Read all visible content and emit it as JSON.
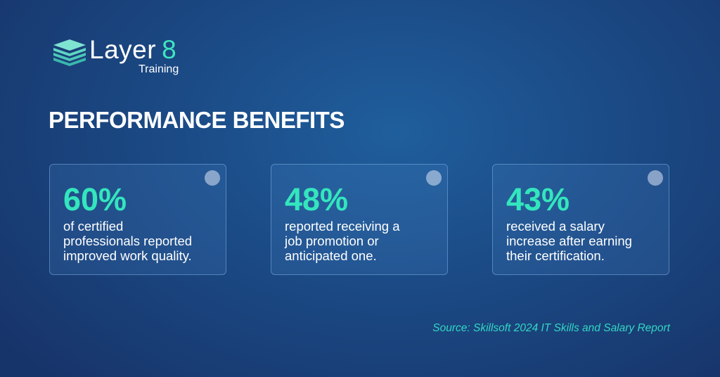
{
  "logo": {
    "name": "Layer",
    "number": "8",
    "tagline": "Training"
  },
  "title": "PERFORMANCE BENEFITS",
  "cards": [
    {
      "stat": "60%",
      "lines": [
        "of certified",
        "professionals reported",
        "improved work quality."
      ]
    },
    {
      "stat": "48%",
      "lines": [
        "reported receiving a",
        "job promotion or",
        "anticipated one."
      ]
    },
    {
      "stat": "43%",
      "lines": [
        "received a salary",
        "increase after earning",
        "their certification."
      ]
    }
  ],
  "source": "Source: Skillsoft 2024 IT Skills and Salary Report"
}
